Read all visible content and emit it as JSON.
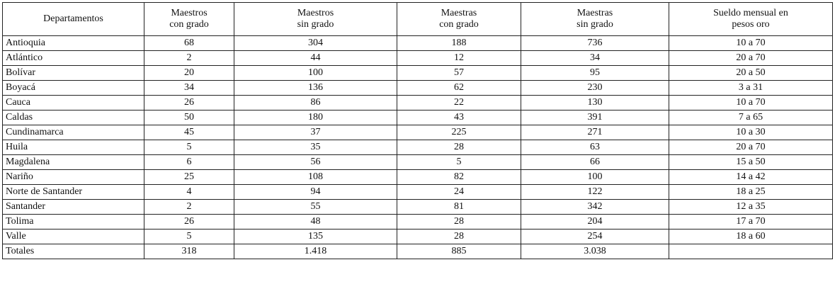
{
  "table": {
    "header": [
      "Departamentos",
      "Maestros\ncon grado",
      "Maestros\nsin grado",
      "Maestras\ncon grado",
      "Maestras\nsin grado",
      "Sueldo mensual en\npesos oro"
    ],
    "rows": [
      [
        "Antioquia",
        "68",
        "304",
        "188",
        "736",
        "10 a 70"
      ],
      [
        "Atlántico",
        "2",
        "44",
        "12",
        "34",
        "20 a 70"
      ],
      [
        "Bolívar",
        "20",
        "100",
        "57",
        "95",
        "20 a 50"
      ],
      [
        "Boyacá",
        "34",
        "136",
        "62",
        "230",
        "3 a 31"
      ],
      [
        "Cauca",
        "26",
        "86",
        "22",
        "130",
        "10 a 70"
      ],
      [
        "Caldas",
        "50",
        "180",
        "43",
        "391",
        "7 a 65"
      ],
      [
        "Cundinamarca",
        "45",
        "37",
        "225",
        "271",
        "10 a 30"
      ],
      [
        "Huila",
        "5",
        "35",
        "28",
        "63",
        "20 a 70"
      ],
      [
        "Magdalena",
        "6",
        "56",
        "5",
        "66",
        "15 a 50"
      ],
      [
        "Nariño",
        "25",
        "108",
        "82",
        "100",
        "14 a 42"
      ],
      [
        "Norte de Santander",
        "4",
        "94",
        "24",
        "122",
        "18 a 25"
      ],
      [
        "Santander",
        "2",
        "55",
        "81",
        "342",
        "12 a 35"
      ],
      [
        "Tolima",
        "26",
        "48",
        "28",
        "204",
        "17 a 70"
      ],
      [
        "Valle",
        "5",
        "135",
        "28",
        "254",
        "18 a 60"
      ],
      [
        "Totales",
        "318",
        "1.418",
        "885",
        "3.038"
      ]
    ]
  }
}
